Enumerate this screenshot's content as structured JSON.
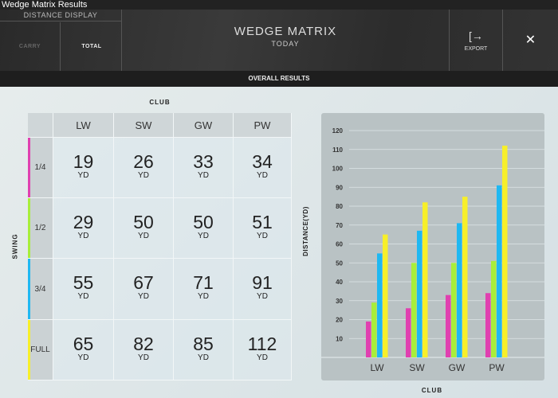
{
  "window": {
    "title": "Wedge Matrix Results"
  },
  "header": {
    "distance_display": "DISTANCE DISPLAY",
    "carry": "CARRY",
    "total": "TOTAL",
    "title": "WEDGE MATRIX",
    "subtitle": "TODAY",
    "export": "EXPORT",
    "export_icon": "export-icon",
    "close_icon": "close-icon"
  },
  "section": "OVERALL RESULTS",
  "table": {
    "club_label": "CLUB",
    "swing_label": "SWING",
    "unit": "YD",
    "columns": [
      "LW",
      "SW",
      "GW",
      "PW"
    ],
    "rows": [
      {
        "label": "1/4",
        "color": "#e040b0",
        "values": [
          "19",
          "26",
          "33",
          "34"
        ]
      },
      {
        "label": "1/2",
        "color": "#a8ee3a",
        "values": [
          "29",
          "50",
          "50",
          "51"
        ]
      },
      {
        "label": "3/4",
        "color": "#1fb8f2",
        "values": [
          "55",
          "67",
          "71",
          "91"
        ]
      },
      {
        "label": "FULL",
        "color": "#f7ef2a",
        "values": [
          "65",
          "82",
          "85",
          "112"
        ]
      }
    ]
  },
  "chart_data": {
    "type": "bar",
    "xlabel": "CLUB",
    "ylabel": "DISTANCE(YD)",
    "categories": [
      "LW",
      "SW",
      "GW",
      "PW"
    ],
    "ylim": [
      0,
      120
    ],
    "yticks": [
      10,
      20,
      30,
      40,
      50,
      60,
      70,
      80,
      90,
      100,
      110,
      120
    ],
    "grid": true,
    "series": [
      {
        "color": "#e040b0",
        "values": [
          19,
          26,
          33,
          34
        ]
      },
      {
        "color": "#a8ee3a",
        "values": [
          29,
          50,
          50,
          51
        ]
      },
      {
        "color": "#1fb8f2",
        "values": [
          55,
          67,
          71,
          91
        ]
      },
      {
        "color": "#f7ef2a",
        "values": [
          65,
          82,
          85,
          112
        ]
      }
    ]
  }
}
